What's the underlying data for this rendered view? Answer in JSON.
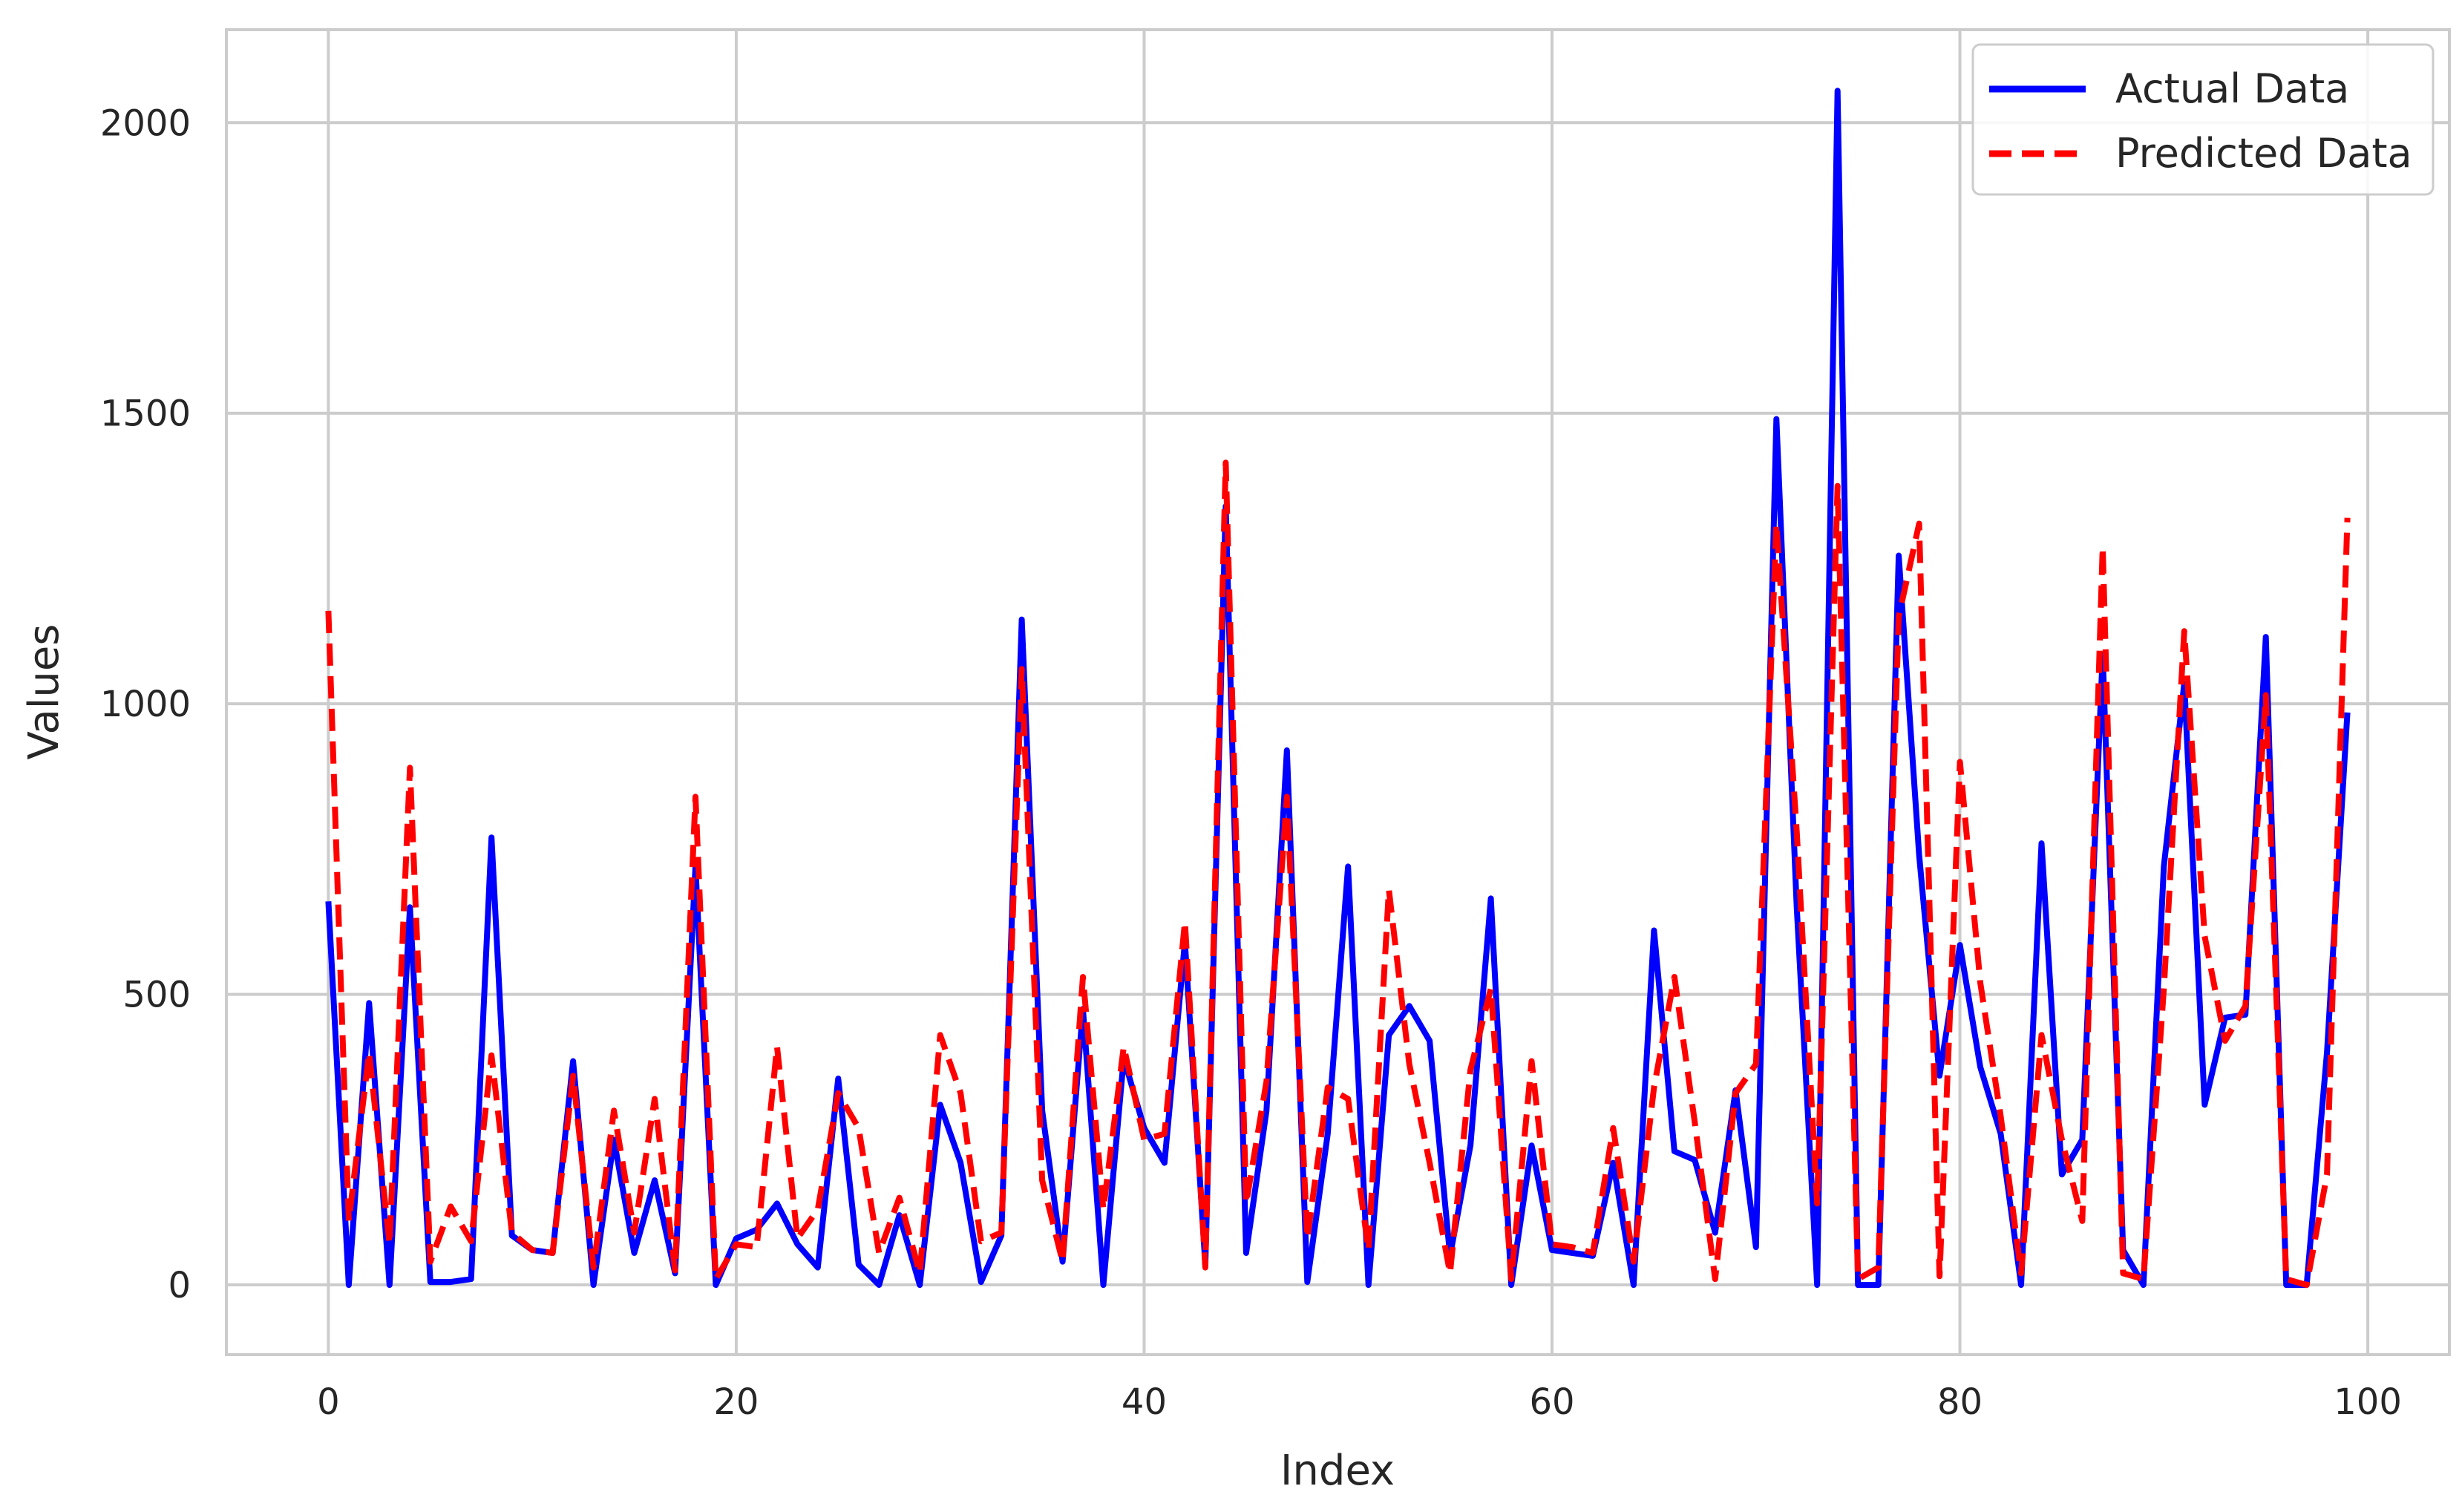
{
  "chart_data": {
    "type": "line",
    "title": "",
    "xlabel": "Index",
    "ylabel": "Values",
    "xlim": [
      -5,
      104
    ],
    "ylim": [
      -120,
      2160
    ],
    "xticks": [
      0,
      20,
      40,
      60,
      80,
      100
    ],
    "yticks": [
      0,
      500,
      1000,
      1500,
      2000
    ],
    "grid": true,
    "legend_position": "top-right",
    "x": [
      0,
      1,
      2,
      3,
      4,
      5,
      6,
      7,
      8,
      9,
      10,
      11,
      12,
      13,
      14,
      15,
      16,
      17,
      18,
      19,
      20,
      21,
      22,
      23,
      24,
      25,
      26,
      27,
      28,
      29,
      30,
      31,
      32,
      33,
      34,
      35,
      36,
      37,
      38,
      39,
      40,
      41,
      42,
      43,
      44,
      45,
      46,
      47,
      48,
      49,
      50,
      51,
      52,
      53,
      54,
      55,
      56,
      57,
      58,
      59,
      60,
      61,
      62,
      63,
      64,
      65,
      66,
      67,
      68,
      69,
      70,
      71,
      72,
      73,
      74,
      75,
      76,
      77,
      78,
      79,
      80,
      81,
      82,
      83,
      84,
      85,
      86,
      87,
      88,
      89,
      90,
      91,
      92,
      93,
      94,
      95,
      96,
      97,
      98,
      99
    ],
    "series": [
      {
        "name": "Actual Data",
        "color": "#0000ff",
        "style": "solid",
        "values": [
          660,
          0,
          485,
          0,
          650,
          5,
          5,
          10,
          770,
          85,
          60,
          55,
          385,
          0,
          250,
          55,
          180,
          20,
          720,
          0,
          80,
          95,
          140,
          70,
          30,
          355,
          35,
          0,
          120,
          0,
          310,
          210,
          5,
          85,
          1145,
          300,
          40,
          475,
          0,
          390,
          270,
          210,
          590,
          35,
          1340,
          55,
          300,
          920,
          5,
          260,
          720,
          0,
          430,
          480,
          420,
          50,
          240,
          665,
          0,
          240,
          60,
          55,
          50,
          210,
          0,
          610,
          230,
          215,
          90,
          335,
          65,
          1490,
          650,
          0,
          2055,
          0,
          0,
          1255,
          740,
          360,
          585,
          375,
          260,
          0,
          760,
          190,
          250,
          1085,
          60,
          0,
          720,
          1035,
          310,
          460,
          465,
          1115,
          0,
          0,
          400,
          985
        ]
      },
      {
        "name": "Predicted Data",
        "color": "#ff0000",
        "style": "dashed",
        "values": [
          1160,
          110,
          400,
          70,
          890,
          40,
          135,
          75,
          395,
          90,
          60,
          55,
          360,
          30,
          300,
          90,
          320,
          25,
          840,
          10,
          70,
          65,
          410,
          80,
          130,
          330,
          270,
          55,
          150,
          20,
          430,
          330,
          75,
          90,
          1060,
          180,
          40,
          530,
          130,
          410,
          250,
          260,
          625,
          30,
          1415,
          140,
          350,
          840,
          80,
          340,
          320,
          60,
          680,
          380,
          210,
          20,
          370,
          510,
          10,
          385,
          70,
          65,
          55,
          270,
          40,
          340,
          530,
          280,
          10,
          330,
          380,
          1310,
          780,
          140,
          1375,
          10,
          30,
          1150,
          1310,
          15,
          900,
          520,
          290,
          20,
          430,
          250,
          110,
          1270,
          20,
          10,
          510,
          1125,
          600,
          420,
          480,
          1015,
          10,
          0,
          190,
          1320
        ]
      }
    ],
    "legend": [
      "Actual Data",
      "Predicted Data"
    ]
  }
}
